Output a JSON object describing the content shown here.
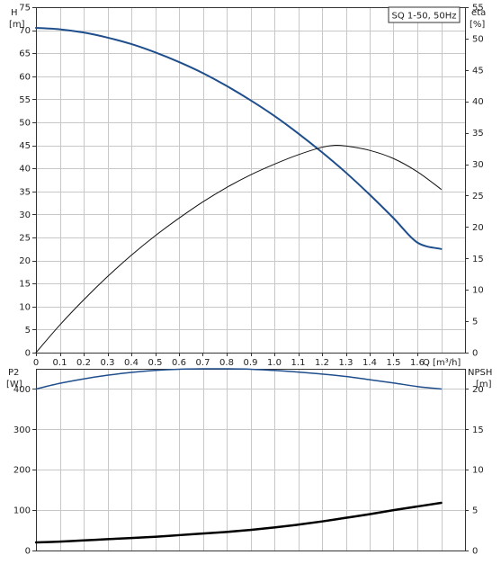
{
  "chart_data": [
    {
      "type": "line",
      "legend_box": "SQ 1-50, 50Hz",
      "legend_placement": "top-right",
      "grid": true,
      "xlabel": "Q [m³/h]",
      "x_ticks": [
        "0",
        "0.1",
        "0.2",
        "0.3",
        "0.4",
        "0.5",
        "0.6",
        "0.7",
        "0.8",
        "0.9",
        "1.0",
        "1.1",
        "1.2",
        "1.3",
        "1.4",
        "1.5",
        "1.6"
      ],
      "xlim": [
        0,
        1.8
      ],
      "left_axis": {
        "label": "H",
        "unit": "[m]",
        "ylim": [
          0,
          75
        ],
        "ticks": [
          "0",
          "5",
          "10",
          "15",
          "20",
          "25",
          "30",
          "35",
          "40",
          "45",
          "50",
          "55",
          "60",
          "65",
          "70",
          "75"
        ]
      },
      "right_axis": {
        "label": "eta",
        "unit": "[%]",
        "ylim": [
          0,
          55
        ],
        "ticks": [
          "0",
          "5",
          "10",
          "15",
          "20",
          "25",
          "30",
          "35",
          "40",
          "45",
          "50",
          "55"
        ]
      },
      "series": [
        {
          "axis": "left",
          "color": "#1f4e8c",
          "width": 2,
          "x": [
            0,
            0.1,
            0.2,
            0.3,
            0.4,
            0.5,
            0.6,
            0.7,
            0.8,
            0.9,
            1.0,
            1.1,
            1.2,
            1.3,
            1.4,
            1.5,
            1.6,
            1.7
          ],
          "values": [
            70.5,
            70.2,
            69.5,
            68.4,
            67.0,
            65.2,
            63.1,
            60.7,
            57.9,
            54.8,
            51.4,
            47.6,
            43.5,
            39.1,
            34.3,
            29.2,
            23.9,
            22.5
          ]
        },
        {
          "axis": "right",
          "color": "#111111",
          "width": 1,
          "x": [
            0,
            0.1,
            0.2,
            0.3,
            0.4,
            0.5,
            0.6,
            0.7,
            0.8,
            0.9,
            1.0,
            1.1,
            1.2,
            1.25,
            1.3,
            1.4,
            1.5,
            1.6,
            1.7
          ],
          "values": [
            0,
            4.4,
            8.4,
            12.1,
            15.5,
            18.6,
            21.4,
            24.0,
            26.3,
            28.3,
            30.0,
            31.5,
            32.7,
            33.0,
            32.9,
            32.2,
            30.9,
            28.8,
            26.0
          ]
        }
      ]
    },
    {
      "type": "line",
      "grid": true,
      "xlim": [
        0,
        1.8
      ],
      "left_axis": {
        "label": "P2",
        "unit": "[W]",
        "ylim": [
          0,
          450
        ],
        "ticks": [
          "0",
          "100",
          "200",
          "300",
          "400"
        ]
      },
      "right_axis": {
        "label": "NPSH",
        "unit": "[m]",
        "ylim": [
          0,
          22.5
        ],
        "ticks": [
          "0",
          "5",
          "10",
          "15",
          "20"
        ]
      },
      "series": [
        {
          "axis": "left",
          "color": "#1f4e8c",
          "width": 1.5,
          "x": [
            0,
            0.1,
            0.2,
            0.3,
            0.4,
            0.5,
            0.6,
            0.7,
            0.8,
            0.9,
            1.0,
            1.1,
            1.2,
            1.3,
            1.4,
            1.5,
            1.6,
            1.7
          ],
          "values": [
            400,
            414,
            425,
            434,
            441,
            446,
            449,
            450,
            450,
            449,
            446,
            442,
            437,
            431,
            423,
            415,
            406,
            400
          ]
        },
        {
          "axis": "right",
          "color": "#000000",
          "width": 2.5,
          "x": [
            0,
            0.1,
            0.2,
            0.3,
            0.4,
            0.5,
            0.6,
            0.7,
            0.8,
            0.9,
            1.0,
            1.1,
            1.2,
            1.3,
            1.4,
            1.5,
            1.6,
            1.7
          ],
          "values": [
            1.0,
            1.1,
            1.25,
            1.4,
            1.55,
            1.7,
            1.9,
            2.1,
            2.3,
            2.55,
            2.85,
            3.2,
            3.6,
            4.05,
            4.5,
            5.0,
            5.45,
            5.9
          ]
        }
      ]
    }
  ]
}
